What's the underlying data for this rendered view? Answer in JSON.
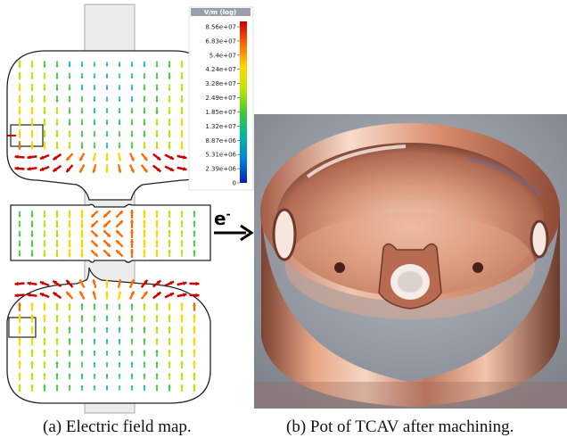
{
  "figure": {
    "panel_a": {
      "colorbar": {
        "title": "V/m (log)",
        "ticks": [
          "8.56e+07",
          "6.83e+07",
          "5.4e+07",
          "4.24e+07",
          "3.28e+07",
          "2.49e+07",
          "1.85e+07",
          "1.32e+07",
          "8.87e+06",
          "5.31e+06",
          "2.39e+06",
          "0"
        ],
        "gradient": [
          "#cc0000",
          "#ff6a00",
          "#ffd800",
          "#b8e600",
          "#38c838",
          "#00b8a0",
          "#0080e0",
          "#0020c0"
        ]
      },
      "beam_label": "e",
      "beam_label_sup": "-",
      "colors": {
        "cavity_fill": "#ffffff",
        "pipe_fill": "#ececec",
        "outline": "#222222"
      }
    },
    "panel_b": {
      "colors": {
        "copper_light": "#f5c8b0",
        "copper": "#c9826a",
        "copper_dark": "#6b3a2c",
        "bench": "#8a8f99"
      }
    },
    "captions": {
      "a": "(a) Electric field map.",
      "b": "(b) Pot of TCAV after machining."
    }
  }
}
